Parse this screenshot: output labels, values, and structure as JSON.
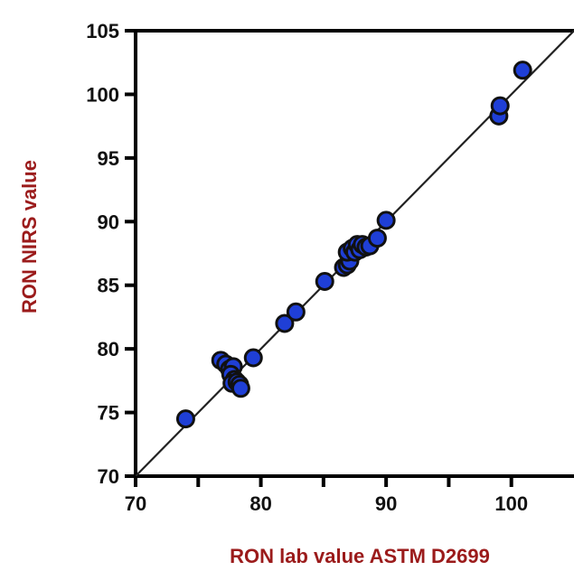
{
  "chart_data": {
    "type": "scatter",
    "title": "",
    "xlabel": "RON lab value ASTM D2699",
    "ylabel": "RON NIRS value",
    "xlim": [
      70,
      105
    ],
    "ylim": [
      70,
      105
    ],
    "x_ticks": [
      70,
      80,
      90,
      100
    ],
    "y_ticks": [
      70,
      75,
      80,
      85,
      90,
      95,
      100,
      105
    ],
    "grid": false,
    "legend": "none",
    "reference_line": "y = x",
    "colors": {
      "points": "#1f3fd6",
      "point_edge": "#111111",
      "axis_title": "#9b1b1b",
      "axes": "#000000"
    },
    "series": [
      {
        "points": [
          {
            "x": 74.0,
            "y": 74.5
          },
          {
            "x": 76.8,
            "y": 79.1
          },
          {
            "x": 77.2,
            "y": 78.8
          },
          {
            "x": 77.5,
            "y": 78.4
          },
          {
            "x": 77.8,
            "y": 78.6
          },
          {
            "x": 77.6,
            "y": 78.0
          },
          {
            "x": 77.9,
            "y": 77.6
          },
          {
            "x": 77.7,
            "y": 77.3
          },
          {
            "x": 78.1,
            "y": 77.4
          },
          {
            "x": 78.3,
            "y": 77.2
          },
          {
            "x": 78.4,
            "y": 76.9
          },
          {
            "x": 79.4,
            "y": 79.3
          },
          {
            "x": 81.9,
            "y": 82.0
          },
          {
            "x": 82.8,
            "y": 82.9
          },
          {
            "x": 85.1,
            "y": 85.3
          },
          {
            "x": 86.6,
            "y": 86.4
          },
          {
            "x": 86.9,
            "y": 86.6
          },
          {
            "x": 87.1,
            "y": 86.9
          },
          {
            "x": 86.9,
            "y": 87.6
          },
          {
            "x": 87.3,
            "y": 87.9
          },
          {
            "x": 87.5,
            "y": 87.6
          },
          {
            "x": 87.7,
            "y": 88.2
          },
          {
            "x": 87.9,
            "y": 87.8
          },
          {
            "x": 88.1,
            "y": 88.2
          },
          {
            "x": 88.4,
            "y": 88.0
          },
          {
            "x": 88.7,
            "y": 88.1
          },
          {
            "x": 89.3,
            "y": 88.7
          },
          {
            "x": 90.0,
            "y": 90.1
          },
          {
            "x": 99.0,
            "y": 98.3
          },
          {
            "x": 99.1,
            "y": 99.1
          },
          {
            "x": 100.9,
            "y": 101.9
          }
        ]
      }
    ]
  }
}
